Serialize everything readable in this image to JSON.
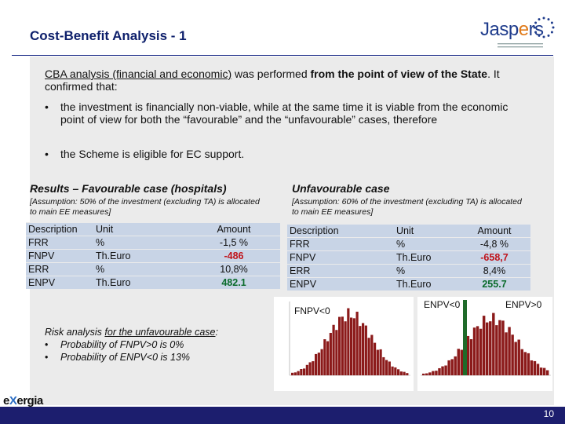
{
  "slide": {
    "title": "Cost-Benefit Analysis - 1",
    "page_number": "10"
  },
  "logo": {
    "name_prefix": "Jasp",
    "name_accent": "e",
    "name_suffix": "rs",
    "brand_color": "#1f3c8c",
    "accent_color": "#e07a19"
  },
  "footer_logo": {
    "prefix": "e",
    "x": "X",
    "suffix": "ergia"
  },
  "intro": {
    "underlined": "CBA analysis (financial and economic)",
    "plain1": " was performed ",
    "bold": "from the point of view of the State",
    "plain2": ". It confirmed that:"
  },
  "bullets": [
    {
      "marker": "•",
      "text": "the investment is financially non-viable, while at the same time it is viable from the economic point of view for both the “favourable” and the “unfavourable” cases, therefore"
    },
    {
      "marker": "•",
      "text": "the Scheme is eligible for EC support."
    }
  ],
  "favourable": {
    "heading": "Results – Favourable case (hospitals)",
    "assumption": "[Assumption: 50% of the investment (excluding TA) is allocated to main EE measures]",
    "columns": [
      "Description",
      "Unit",
      "Amount"
    ],
    "rows": [
      {
        "description": "FRR",
        "unit": "%",
        "amount": "-1,5 %"
      },
      {
        "description": "FNPV",
        "unit": "Th.Euro",
        "amount": "-486"
      },
      {
        "description": "ERR",
        "unit": "%",
        "amount": "10,8%"
      },
      {
        "description": "ENPV",
        "unit": "Th.Euro",
        "amount": "482.1"
      }
    ]
  },
  "unfavourable": {
    "heading": "Unfavourable case",
    "assumption": "[Assumption: 60% of the investment (excluding TA) is allocated to main EE measures]",
    "columns": [
      "Description",
      "Unit",
      "Amount"
    ],
    "rows": [
      {
        "description": "FRR",
        "unit": "%",
        "amount": "-4,8 %"
      },
      {
        "description": "FNPV",
        "unit": "Th.Euro",
        "amount": "-658,7"
      },
      {
        "description": "ERR",
        "unit": "%",
        "amount": "8,4%"
      },
      {
        "description": "ENPV",
        "unit": "Th.Euro",
        "amount": "255.7"
      }
    ]
  },
  "risk": {
    "heading_plain": "Risk analysis ",
    "heading_underlined": "for the unfavourable case",
    "heading_end": ":",
    "items": [
      {
        "marker": "•",
        "text": "Probability of FNPV>0  is 0%"
      },
      {
        "marker": "•",
        "text": "Probability of ENPV<0  is 13%"
      }
    ]
  },
  "histograms": {
    "left_label": "FNPV<0",
    "right_label_left": "ENPV<0",
    "right_label_right": "ENPV>0",
    "bar_color": "#8b1a1a",
    "marker_color": "#1f6b2a"
  }
}
